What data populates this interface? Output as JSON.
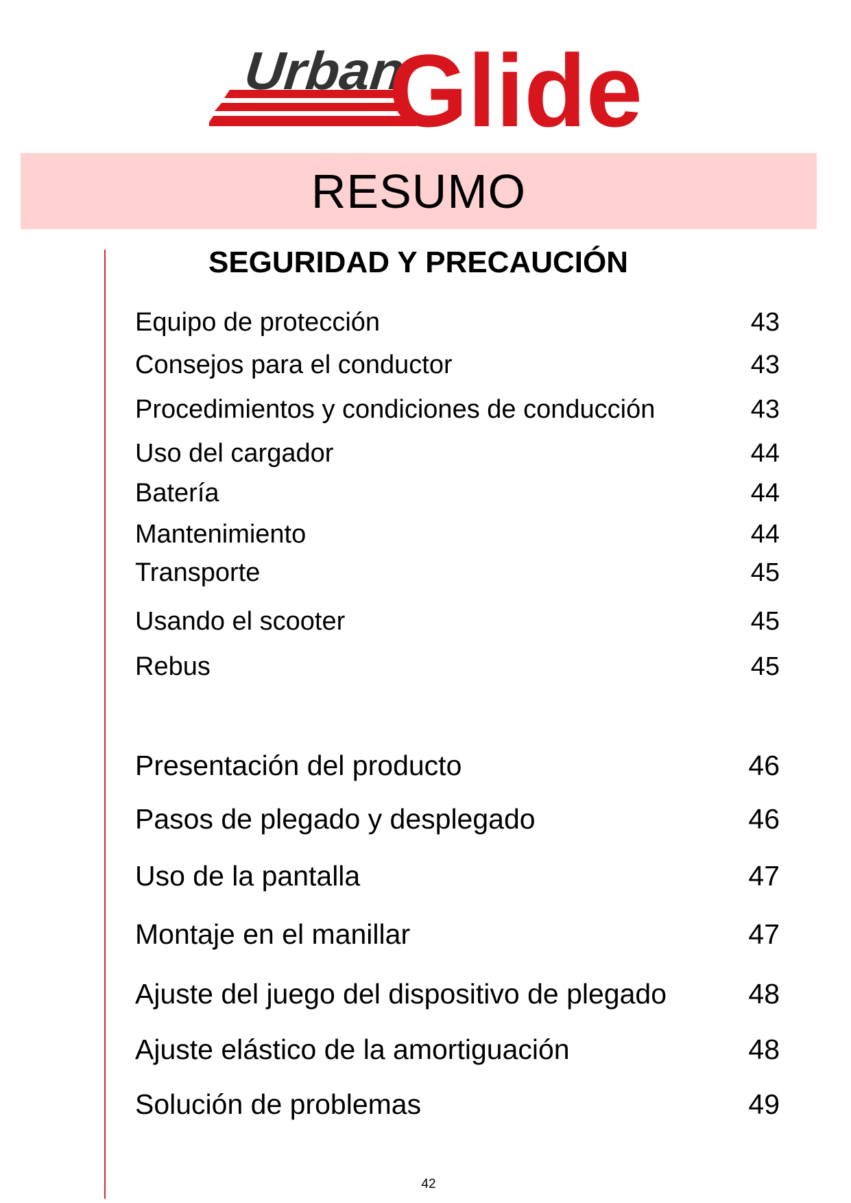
{
  "logo": {
    "word1": "Urban",
    "word2": "Glide",
    "colors": {
      "dark": "#333333",
      "red": "#d7151d"
    }
  },
  "title": "RESUMO",
  "section_title": "SEGURIDAD Y PRECAUCIÓN",
  "group1": [
    {
      "label": "Equipo de protección",
      "page": "43"
    },
    {
      "label": "Consejos para el conductor",
      "page": "43"
    },
    {
      "label": "Procedimientos y condiciones de conducción",
      "page": "43"
    },
    {
      "label": "Uso del cargador",
      "page": "44"
    },
    {
      "label": "Batería",
      "page": "44"
    },
    {
      "label": "Mantenimiento",
      "page": "44"
    },
    {
      "label": "Transporte",
      "page": "45"
    },
    {
      "label": "Usando el scooter",
      "page": "45"
    },
    {
      "label": "Rebus",
      "page": "45"
    }
  ],
  "group2": [
    {
      "label": "Presentación del producto",
      "page": "46"
    },
    {
      "label": "Pasos de plegado y desplegado",
      "page": "46"
    },
    {
      "label": "Uso de la pantalla",
      "page": "47"
    },
    {
      "label": "Montaje en el manillar",
      "page": "47"
    },
    {
      "label": "Ajuste del juego del dispositivo de plegado",
      "page": "48"
    },
    {
      "label": "Ajuste elástico de la amortiguación",
      "page": "48"
    },
    {
      "label": "Solución de problemas",
      "page": "49"
    }
  ],
  "page_number": "42"
}
